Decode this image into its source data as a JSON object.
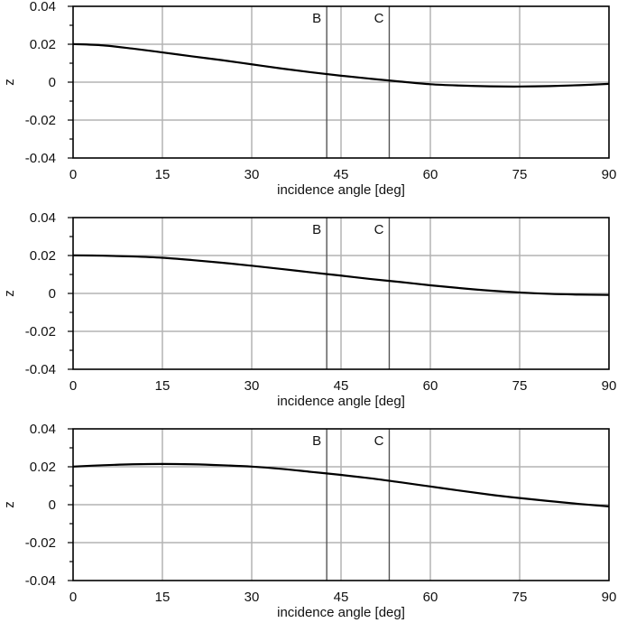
{
  "chart_data": [
    {
      "type": "line",
      "xlabel": "incidence angle [deg]",
      "ylabel": "z",
      "xlim": [
        0,
        90
      ],
      "ylim": [
        -0.04,
        0.04
      ],
      "xticks": [
        "0",
        "15",
        "30",
        "45",
        "60",
        "75",
        "90"
      ],
      "yticks": [
        "0.04",
        "0.02",
        "0",
        "-0.02",
        "-0.04"
      ],
      "grid": true,
      "markers": [
        {
          "label": "B",
          "x": 42.6
        },
        {
          "label": "C",
          "x": 53.1
        }
      ],
      "series": [
        {
          "x": [
            0,
            5,
            10,
            15,
            20,
            25,
            30,
            35,
            40,
            45,
            50,
            55,
            60,
            65,
            70,
            75,
            80,
            85,
            90
          ],
          "y": [
            0.0201,
            0.0194,
            0.0177,
            0.0157,
            0.0136,
            0.0116,
            0.0094,
            0.0072,
            0.0052,
            0.0034,
            0.0018,
            0.0003,
            -0.0011,
            -0.0018,
            -0.0022,
            -0.0023,
            -0.0021,
            -0.0016,
            -0.0009
          ]
        }
      ]
    },
    {
      "type": "line",
      "xlabel": "incidence angle [deg]",
      "ylabel": "z",
      "xlim": [
        0,
        90
      ],
      "ylim": [
        -0.04,
        0.04
      ],
      "xticks": [
        "0",
        "15",
        "30",
        "45",
        "60",
        "75",
        "90"
      ],
      "yticks": [
        "0.04",
        "0.02",
        "0",
        "-0.02",
        "-0.04"
      ],
      "grid": true,
      "markers": [
        {
          "label": "B",
          "x": 42.6
        },
        {
          "label": "C",
          "x": 53.1
        }
      ],
      "series": [
        {
          "x": [
            0,
            5,
            10,
            15,
            20,
            25,
            30,
            35,
            40,
            45,
            50,
            55,
            60,
            65,
            70,
            75,
            80,
            85,
            90
          ],
          "y": [
            0.0201,
            0.0199,
            0.0195,
            0.0188,
            0.0176,
            0.0162,
            0.0146,
            0.0129,
            0.0111,
            0.0094,
            0.0076,
            0.006,
            0.0043,
            0.0028,
            0.0015,
            0.0005,
            -0.0002,
            -0.0006,
            -0.0008
          ]
        }
      ]
    },
    {
      "type": "line",
      "xlabel": "incidence angle [deg]",
      "ylabel": "z",
      "xlim": [
        0,
        90
      ],
      "ylim": [
        -0.04,
        0.04
      ],
      "xticks": [
        "0",
        "15",
        "30",
        "45",
        "60",
        "75",
        "90"
      ],
      "yticks": [
        "0.04",
        "0.02",
        "0",
        "-0.02",
        "-0.04"
      ],
      "grid": true,
      "markers": [
        {
          "label": "B",
          "x": 42.6
        },
        {
          "label": "C",
          "x": 53.1
        }
      ],
      "series": [
        {
          "x": [
            0,
            5,
            10,
            15,
            20,
            25,
            30,
            35,
            40,
            45,
            50,
            55,
            60,
            65,
            70,
            75,
            80,
            85,
            90
          ],
          "y": [
            0.0201,
            0.0208,
            0.0213,
            0.0215,
            0.0213,
            0.0208,
            0.0201,
            0.0189,
            0.0173,
            0.0157,
            0.0139,
            0.0118,
            0.0096,
            0.0074,
            0.0053,
            0.0035,
            0.0019,
            0.0004,
            -0.0009
          ]
        }
      ]
    }
  ]
}
